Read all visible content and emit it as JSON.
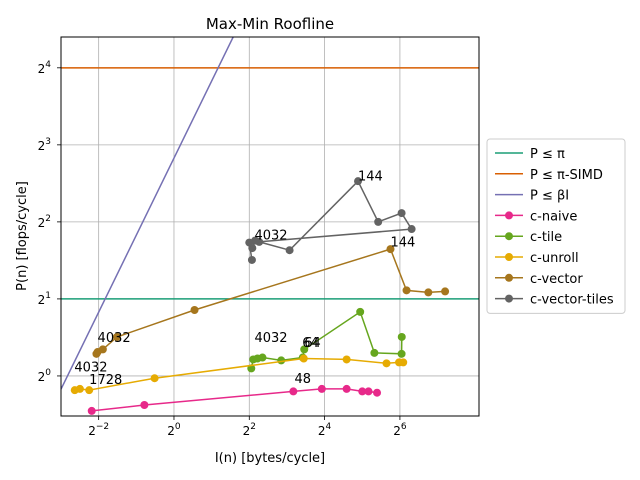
{
  "chart_data": {
    "type": "line",
    "title": "Max-Min Roofline",
    "xlabel": "I(n) [bytes/cycle]",
    "ylabel": "P(n) [flops/cycle]",
    "xscale": "log2",
    "yscale": "log2",
    "xlim_log2": [
      -3.0,
      8.1
    ],
    "ylim_log2": [
      -0.52,
      4.4
    ],
    "x_ticks": [
      {
        "exp": -2,
        "label": "2",
        "sup": "−2"
      },
      {
        "exp": 0,
        "label": "2",
        "sup": "0"
      },
      {
        "exp": 2,
        "label": "2",
        "sup": "2"
      },
      {
        "exp": 4,
        "label": "2",
        "sup": "4"
      },
      {
        "exp": 6,
        "label": "2",
        "sup": "6"
      }
    ],
    "y_ticks": [
      {
        "exp": 0,
        "label": "2",
        "sup": "0"
      },
      {
        "exp": 1,
        "label": "2",
        "sup": "1"
      },
      {
        "exp": 2,
        "label": "2",
        "sup": "2"
      },
      {
        "exp": 3,
        "label": "2",
        "sup": "3"
      },
      {
        "exp": 4,
        "label": "2",
        "sup": "4"
      }
    ],
    "grid": true,
    "legend_position": "outside-right",
    "roofs": [
      {
        "name": "P ≤ π",
        "color": "#1b9e77",
        "kind": "horizontal",
        "y": 2
      },
      {
        "name": "P ≤ π-SIMD",
        "color": "#d95f02",
        "kind": "horizontal",
        "y": 16
      },
      {
        "name": "P ≤ βI",
        "color": "#7570b3",
        "kind": "slope",
        "beta": 7.1
      }
    ],
    "series": [
      {
        "name": "c-naive",
        "color": "#e7298a",
        "points": [
          [
            0.22,
            0.73
          ],
          [
            0.58,
            0.77
          ],
          [
            9.0,
            0.87
          ],
          [
            15.2,
            0.89
          ],
          [
            24.0,
            0.89
          ],
          [
            32.0,
            0.87
          ],
          [
            35.9,
            0.87
          ],
          [
            42.0,
            0.86
          ]
        ]
      },
      {
        "name": "c-tile",
        "color": "#66a61e",
        "points": [
          [
            4.15,
            1.07
          ],
          [
            4.3,
            1.16
          ],
          [
            4.65,
            1.17
          ],
          [
            5.1,
            1.18
          ],
          [
            7.2,
            1.15
          ],
          [
            10.7,
            1.18
          ],
          [
            11.0,
            1.27
          ],
          [
            30.8,
            1.78
          ],
          [
            40.0,
            1.23
          ],
          [
            66.0,
            1.22
          ],
          [
            66.2,
            1.42
          ]
        ]
      },
      {
        "name": "c-unroll",
        "color": "#e6ab02",
        "points": [
          [
            0.161,
            0.88
          ],
          [
            0.177,
            0.89
          ],
          [
            0.21,
            0.88
          ],
          [
            0.7,
            0.98
          ],
          [
            10.9,
            1.17
          ],
          [
            24.0,
            1.16
          ],
          [
            50.0,
            1.12
          ],
          [
            63.0,
            1.13
          ],
          [
            68.0,
            1.13
          ]
        ]
      },
      {
        "name": "c-vector",
        "color": "#a6761d",
        "points": [
          [
            0.24,
            1.22
          ],
          [
            0.245,
            1.24
          ],
          [
            0.27,
            1.27
          ],
          [
            0.35,
            1.42
          ],
          [
            1.46,
            1.81
          ],
          [
            53.8,
            3.13
          ],
          [
            72.3,
            2.16
          ],
          [
            108.0,
            2.12
          ],
          [
            147.0,
            2.14
          ]
        ]
      },
      {
        "name": "c-vector-tiles",
        "color": "#636363",
        "points": [
          [
            4.23,
            3.16
          ],
          [
            4.45,
            3.38
          ],
          [
            4.8,
            3.34
          ],
          [
            8.4,
            3.1
          ],
          [
            29.6,
            5.77
          ],
          [
            42.9,
            4.0
          ],
          [
            66.0,
            4.33
          ],
          [
            79.4,
            3.75
          ],
          [
            4.0,
            3.32
          ],
          [
            4.2,
            2.84
          ]
        ]
      }
    ],
    "annotations": [
      {
        "text": "4032",
        "x": 0.245,
        "y": 1.36
      },
      {
        "text": "4032",
        "x": 0.16,
        "y": 1.04
      },
      {
        "text": "1728",
        "x": 0.21,
        "y": 0.93
      },
      {
        "text": "4032",
        "x": 4.4,
        "y": 1.36
      },
      {
        "text": "64",
        "x": 10.6,
        "y": 1.3
      },
      {
        "text": "64",
        "x": 11.0,
        "y": 1.3
      },
      {
        "text": "48",
        "x": 9.2,
        "y": 0.94
      },
      {
        "text": "144",
        "x": 29.6,
        "y": 5.8
      },
      {
        "text": "144",
        "x": 53.8,
        "y": 3.2
      },
      {
        "text": "4032",
        "x": 4.4,
        "y": 3.42
      }
    ]
  }
}
